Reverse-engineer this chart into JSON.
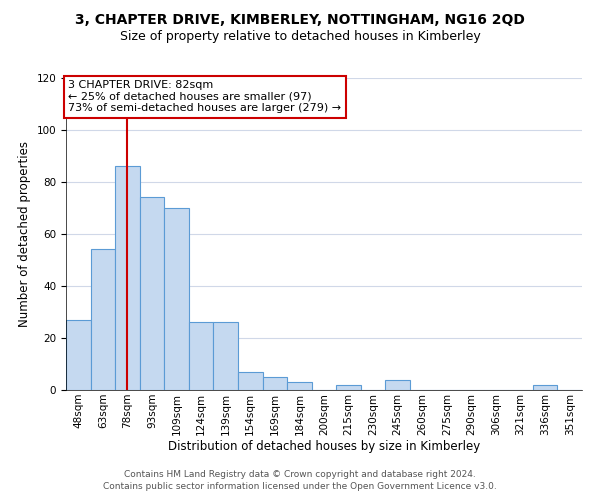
{
  "title": "3, CHAPTER DRIVE, KIMBERLEY, NOTTINGHAM, NG16 2QD",
  "subtitle": "Size of property relative to detached houses in Kimberley",
  "xlabel": "Distribution of detached houses by size in Kimberley",
  "ylabel": "Number of detached properties",
  "categories": [
    "48sqm",
    "63sqm",
    "78sqm",
    "93sqm",
    "109sqm",
    "124sqm",
    "139sqm",
    "154sqm",
    "169sqm",
    "184sqm",
    "200sqm",
    "215sqm",
    "230sqm",
    "245sqm",
    "260sqm",
    "275sqm",
    "290sqm",
    "306sqm",
    "321sqm",
    "336sqm",
    "351sqm"
  ],
  "values": [
    27,
    54,
    86,
    74,
    70,
    26,
    26,
    7,
    5,
    3,
    0,
    2,
    0,
    4,
    0,
    0,
    0,
    0,
    0,
    2,
    0
  ],
  "bar_color": "#c5d9f0",
  "bar_edge_color": "#5b9bd5",
  "ylim": [
    0,
    120
  ],
  "yticks": [
    0,
    20,
    40,
    60,
    80,
    100,
    120
  ],
  "property_line_x": 2,
  "annotation_line1": "3 CHAPTER DRIVE: 82sqm",
  "annotation_line2": "← 25% of detached houses are smaller (97)",
  "annotation_line3": "73% of semi-detached houses are larger (279) →",
  "annotation_box_color": "#ffffff",
  "annotation_box_edge": "#cc0000",
  "property_line_color": "#cc0000",
  "footer_line1": "Contains HM Land Registry data © Crown copyright and database right 2024.",
  "footer_line2": "Contains public sector information licensed under the Open Government Licence v3.0.",
  "background_color": "#ffffff",
  "grid_color": "#d0d8e8",
  "title_fontsize": 10,
  "subtitle_fontsize": 9,
  "xlabel_fontsize": 8.5,
  "ylabel_fontsize": 8.5,
  "tick_fontsize": 7.5,
  "annot_fontsize": 8,
  "footer_fontsize": 6.5
}
